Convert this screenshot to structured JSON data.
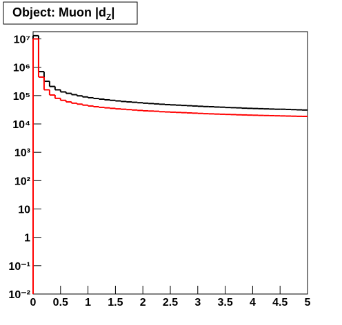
{
  "chart_data": {
    "type": "histogram",
    "title": [
      "Object: Muon |d",
      "Z",
      "|"
    ],
    "log_y": true,
    "bins": [
      0,
      0.1,
      0.2,
      0.3,
      0.4,
      0.5,
      0.6,
      0.7,
      0.8,
      0.9,
      1,
      1.1,
      1.2,
      1.3,
      1.4,
      1.5,
      1.6,
      1.7,
      1.8,
      1.9,
      2,
      2.1,
      2.2,
      2.3,
      2.4,
      2.5,
      2.6,
      2.7,
      2.8,
      2.9,
      3,
      3.1,
      3.2,
      3.3,
      3.4,
      3.5,
      3.6,
      3.7,
      3.8,
      3.9,
      4,
      4.1,
      4.2,
      4.3,
      4.4,
      4.5,
      4.6,
      4.7,
      4.8,
      4.9,
      5
    ],
    "series": [
      {
        "color": "#000000",
        "values": [
          13000000,
          700000,
          320000,
          210000,
          160000,
          135000,
          120000,
          108000,
          98000,
          90000,
          84000,
          79000,
          75000,
          71000,
          68000,
          65000,
          62000,
          60000,
          58000,
          56000,
          54000,
          52500,
          51000,
          49500,
          48000,
          47000,
          46000,
          45000,
          44000,
          43000,
          42000,
          41000,
          40500,
          39500,
          39000,
          38000,
          37500,
          37000,
          36000,
          35500,
          35000,
          34500,
          34000,
          33500,
          33000,
          33000,
          32500,
          32000,
          31500,
          31000
        ]
      },
      {
        "color": "#ff0000",
        "values": [
          10000000,
          450000,
          160000,
          105000,
          80000,
          68000,
          60000,
          54000,
          50000,
          46000,
          43000,
          40500,
          38500,
          37000,
          35500,
          34000,
          33000,
          32000,
          31000,
          30000,
          29000,
          28500,
          28000,
          27000,
          26500,
          26000,
          25500,
          25000,
          24500,
          24000,
          23500,
          23000,
          22700,
          22300,
          22000,
          21700,
          21400,
          21000,
          20800,
          20500,
          20300,
          20000,
          19800,
          19600,
          19400,
          19200,
          19000,
          18800,
          18600,
          18500
        ]
      }
    ],
    "xlim": [
      0,
      5
    ],
    "xticks": [
      0,
      0.5,
      1,
      1.5,
      2,
      2.5,
      3,
      3.5,
      4,
      4.5,
      5
    ],
    "ylim": [
      0.01,
      18000000
    ],
    "yticks": [
      {
        "value": 0.01,
        "label": "10⁻²"
      },
      {
        "value": 0.1,
        "label": "10⁻¹"
      },
      1,
      10,
      {
        "value": 100,
        "label": "10²"
      },
      {
        "value": 1000,
        "label": "10³"
      },
      {
        "value": 10000,
        "label": "10⁴"
      },
      {
        "value": 100000,
        "label": "10⁵"
      },
      {
        "value": 1000000,
        "label": "10⁶"
      },
      {
        "value": 10000000,
        "label": "10⁷"
      }
    ]
  }
}
